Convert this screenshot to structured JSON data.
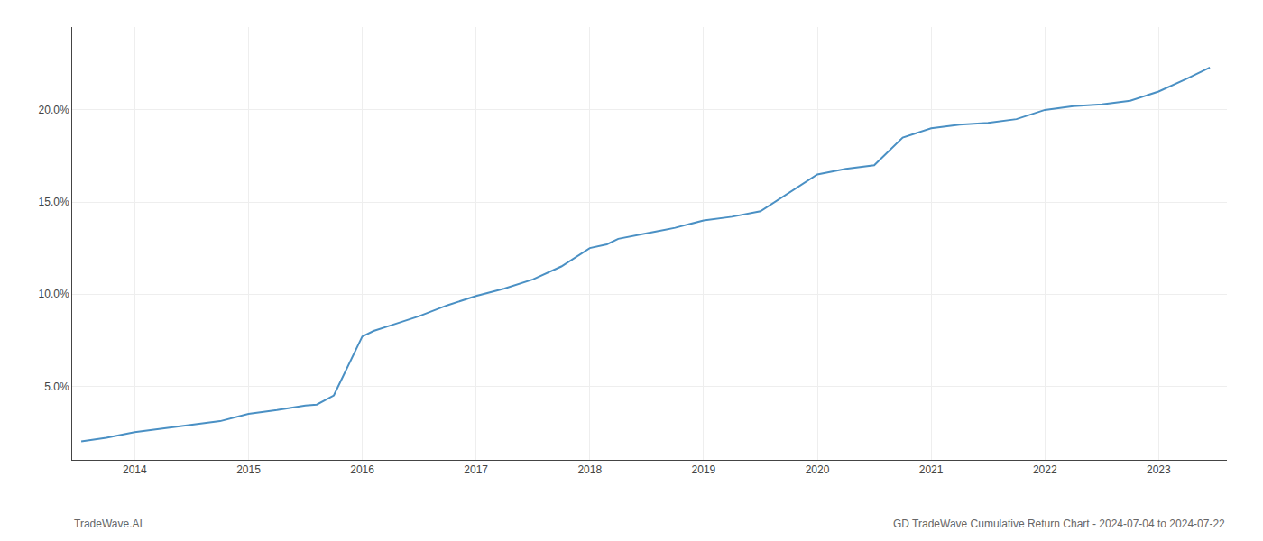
{
  "chart_data": {
    "type": "line",
    "annotations": [
      "TradeWave.AI",
      "GD TradeWave Cumulative Return Chart - 2024-07-04 to 2024-07-22"
    ],
    "color": "#4a90c4",
    "x": [
      2013.53,
      2013.75,
      2014.0,
      2014.25,
      2014.5,
      2014.75,
      2015.0,
      2015.25,
      2015.45,
      2015.5,
      2015.6,
      2015.75,
      2016.0,
      2016.1,
      2016.25,
      2016.5,
      2016.75,
      2017.0,
      2017.25,
      2017.5,
      2017.75,
      2018.0,
      2018.15,
      2018.25,
      2018.5,
      2018.75,
      2019.0,
      2019.25,
      2019.5,
      2019.75,
      2020.0,
      2020.25,
      2020.5,
      2020.75,
      2021.0,
      2021.25,
      2021.5,
      2021.75,
      2022.0,
      2022.25,
      2022.5,
      2022.75,
      2023.0,
      2023.25,
      2023.45
    ],
    "values": [
      2.0,
      2.2,
      2.5,
      2.7,
      2.9,
      3.1,
      3.5,
      3.7,
      3.9,
      3.95,
      4.0,
      4.5,
      7.7,
      8.0,
      8.3,
      8.8,
      9.4,
      9.9,
      10.3,
      10.8,
      11.5,
      12.5,
      12.7,
      13.0,
      13.3,
      13.6,
      14.0,
      14.2,
      14.5,
      15.5,
      16.5,
      16.8,
      17.0,
      18.5,
      19.0,
      19.2,
      19.3,
      19.5,
      20.0,
      20.2,
      20.3,
      20.5,
      21.0,
      21.7,
      22.3
    ],
    "xlim": [
      2013.45,
      2023.6
    ],
    "xticks": [
      2014,
      2015,
      2016,
      2017,
      2018,
      2019,
      2020,
      2021,
      2022,
      2023
    ],
    "ylim": [
      1.0,
      24.5
    ],
    "yticks": [
      {
        "value": 5.0,
        "label": "5.0%"
      },
      {
        "value": 10.0,
        "label": "10.0%"
      },
      {
        "value": 15.0,
        "label": "15.0%"
      },
      {
        "value": 20.0,
        "label": "20.0%"
      }
    ],
    "grid": true
  }
}
